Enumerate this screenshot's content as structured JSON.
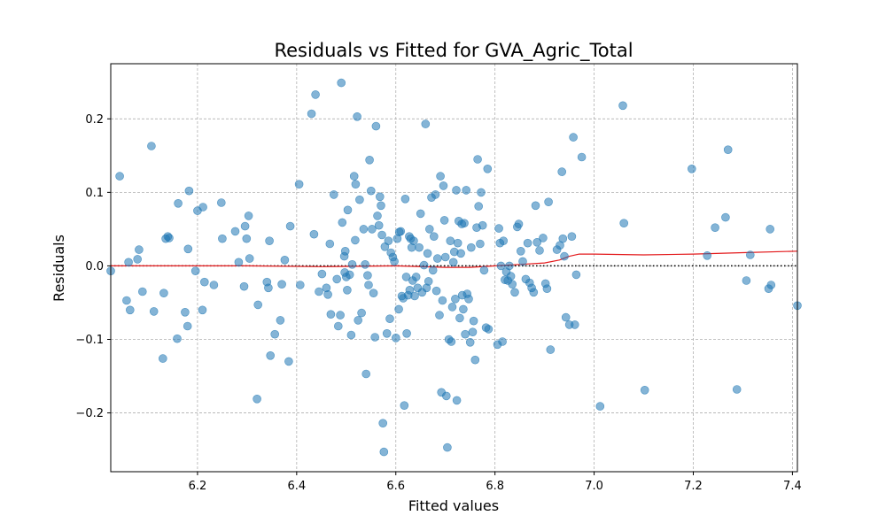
{
  "chart_data": {
    "type": "scatter",
    "title": "Residuals vs Fitted for GVA_Agric_Total",
    "xlabel": "Fitted values",
    "ylabel": "Residuals",
    "xlim": [
      6.025,
      7.41
    ],
    "ylim": [
      -0.28,
      0.275
    ],
    "xticks": [
      6.2,
      6.4,
      6.6,
      6.8,
      7.0,
      7.2,
      7.4
    ],
    "yticks": [
      -0.2,
      -0.1,
      0.0,
      0.1,
      0.2
    ],
    "xtick_labels": [
      "6.2",
      "6.4",
      "6.6",
      "6.8",
      "7.0",
      "7.2",
      "7.4"
    ],
    "ytick_labels": [
      "−0.2",
      "−0.1",
      "0.0",
      "0.1",
      "0.2"
    ],
    "grid": true,
    "point_color": "#1f77b4",
    "point_alpha": 0.55,
    "smooth_color": "#e31a1c",
    "zero_line_color": "#000000",
    "points": [
      [
        6.025,
        -0.007
      ],
      [
        6.043,
        0.122
      ],
      [
        6.057,
        -0.047
      ],
      [
        6.061,
        0.005
      ],
      [
        6.064,
        -0.06
      ],
      [
        6.079,
        0.009
      ],
      [
        6.082,
        0.022
      ],
      [
        6.089,
        -0.035
      ],
      [
        6.107,
        0.163
      ],
      [
        6.112,
        -0.062
      ],
      [
        6.13,
        -0.126
      ],
      [
        6.132,
        -0.037
      ],
      [
        6.136,
        0.037
      ],
      [
        6.14,
        0.04
      ],
      [
        6.143,
        0.038
      ],
      [
        6.159,
        -0.099
      ],
      [
        6.161,
        0.085
      ],
      [
        6.175,
        -0.063
      ],
      [
        6.18,
        -0.082
      ],
      [
        6.181,
        0.023
      ],
      [
        6.183,
        0.102
      ],
      [
        6.196,
        -0.007
      ],
      [
        6.2,
        0.075
      ],
      [
        6.21,
        -0.06
      ],
      [
        6.211,
        0.08
      ],
      [
        6.214,
        -0.022
      ],
      [
        6.233,
        -0.026
      ],
      [
        6.248,
        0.086
      ],
      [
        6.25,
        0.037
      ],
      [
        6.276,
        0.047
      ],
      [
        6.283,
        0.005
      ],
      [
        6.294,
        -0.028
      ],
      [
        6.296,
        0.054
      ],
      [
        6.299,
        0.037
      ],
      [
        6.303,
        0.068
      ],
      [
        6.305,
        0.01
      ],
      [
        6.32,
        -0.181
      ],
      [
        6.322,
        -0.053
      ],
      [
        6.34,
        -0.022
      ],
      [
        6.343,
        -0.03
      ],
      [
        6.345,
        0.034
      ],
      [
        6.347,
        -0.122
      ],
      [
        6.356,
        -0.093
      ],
      [
        6.367,
        -0.074
      ],
      [
        6.37,
        -0.025
      ],
      [
        6.376,
        0.008
      ],
      [
        6.384,
        -0.13
      ],
      [
        6.387,
        0.054
      ],
      [
        6.405,
        0.111
      ],
      [
        6.407,
        -0.026
      ],
      [
        6.43,
        0.207
      ],
      [
        6.435,
        0.043
      ],
      [
        6.438,
        0.233
      ],
      [
        6.445,
        -0.035
      ],
      [
        6.451,
        -0.011
      ],
      [
        6.46,
        -0.03
      ],
      [
        6.463,
        -0.039
      ],
      [
        6.467,
        0.03
      ],
      [
        6.469,
        -0.066
      ],
      [
        6.475,
        0.097
      ],
      [
        6.481,
        -0.018
      ],
      [
        6.484,
        -0.082
      ],
      [
        6.488,
        -0.067
      ],
      [
        6.49,
        0.249
      ],
      [
        6.492,
        0.059
      ],
      [
        6.496,
        0.013
      ],
      [
        6.497,
        -0.009
      ],
      [
        6.498,
        0.02
      ],
      [
        6.5,
        -0.015
      ],
      [
        6.502,
        -0.033
      ],
      [
        6.503,
        0.076
      ],
      [
        6.507,
        -0.012
      ],
      [
        6.51,
        -0.094
      ],
      [
        6.512,
        0.002
      ],
      [
        6.516,
        0.122
      ],
      [
        6.518,
        0.035
      ],
      [
        6.519,
        0.111
      ],
      [
        6.522,
        0.203
      ],
      [
        6.524,
        -0.074
      ],
      [
        6.527,
        0.09
      ],
      [
        6.531,
        -0.064
      ],
      [
        6.535,
        0.05
      ],
      [
        6.538,
        0.002
      ],
      [
        6.54,
        -0.147
      ],
      [
        6.543,
        -0.013
      ],
      [
        6.545,
        -0.026
      ],
      [
        6.547,
        0.144
      ],
      [
        6.55,
        0.102
      ],
      [
        6.552,
        0.05
      ],
      [
        6.555,
        -0.037
      ],
      [
        6.558,
        -0.097
      ],
      [
        6.56,
        0.19
      ],
      [
        6.563,
        0.068
      ],
      [
        6.566,
        0.055
      ],
      [
        6.568,
        0.094
      ],
      [
        6.57,
        0.082
      ],
      [
        6.572,
        0.042
      ],
      [
        6.574,
        -0.214
      ],
      [
        6.576,
        -0.253
      ],
      [
        6.578,
        0.026
      ],
      [
        6.582,
        -0.092
      ],
      [
        6.585,
        0.034
      ],
      [
        6.588,
        -0.072
      ],
      [
        6.59,
        0.018
      ],
      [
        6.594,
        0.012
      ],
      [
        6.597,
        0.006
      ],
      [
        6.6,
        -0.098
      ],
      [
        6.603,
        0.037
      ],
      [
        6.606,
        -0.059
      ],
      [
        6.607,
        0.046
      ],
      [
        6.61,
        0.047
      ],
      [
        6.612,
        -0.041
      ],
      [
        6.615,
        -0.044
      ],
      [
        6.617,
        -0.19
      ],
      [
        6.619,
        0.091
      ],
      [
        6.621,
        -0.015
      ],
      [
        6.622,
        -0.092
      ],
      [
        6.625,
        -0.04
      ],
      [
        6.627,
        0.04
      ],
      [
        6.628,
        -0.033
      ],
      [
        6.63,
        0.037
      ],
      [
        6.632,
        0.025
      ],
      [
        6.634,
        -0.02
      ],
      [
        6.636,
        0.034
      ],
      [
        6.638,
        -0.041
      ],
      [
        6.641,
        -0.015
      ],
      [
        6.644,
        -0.03
      ],
      [
        6.647,
        0.025
      ],
      [
        6.65,
        0.071
      ],
      [
        6.653,
        -0.036
      ],
      [
        6.657,
        0.001
      ],
      [
        6.66,
        0.193
      ],
      [
        6.662,
        -0.03
      ],
      [
        6.664,
        0.017
      ],
      [
        6.666,
        -0.021
      ],
      [
        6.668,
        0.05
      ],
      [
        6.672,
        0.093
      ],
      [
        6.675,
        -0.006
      ],
      [
        6.677,
        0.04
      ],
      [
        6.68,
        0.097
      ],
      [
        6.682,
        -0.034
      ],
      [
        6.684,
        0.01
      ],
      [
        6.688,
        -0.067
      ],
      [
        6.69,
        0.122
      ],
      [
        6.692,
        -0.172
      ],
      [
        6.694,
        -0.047
      ],
      [
        6.696,
        0.109
      ],
      [
        6.698,
        0.062
      ],
      [
        6.7,
        0.012
      ],
      [
        6.702,
        -0.177
      ],
      [
        6.704,
        -0.247
      ],
      [
        6.707,
        -0.1
      ],
      [
        6.71,
        0.034
      ],
      [
        6.712,
        -0.103
      ],
      [
        6.714,
        -0.056
      ],
      [
        6.716,
        0.005
      ],
      [
        6.718,
        0.019
      ],
      [
        6.72,
        -0.045
      ],
      [
        6.722,
        0.103
      ],
      [
        6.723,
        -0.183
      ],
      [
        6.725,
        0.031
      ],
      [
        6.727,
        0.061
      ],
      [
        6.729,
        -0.071
      ],
      [
        6.731,
        0.017
      ],
      [
        6.733,
        0.057
      ],
      [
        6.734,
        -0.04
      ],
      [
        6.736,
        -0.059
      ],
      [
        6.738,
        0.058
      ],
      [
        6.74,
        -0.093
      ],
      [
        6.742,
        0.103
      ],
      [
        6.744,
        -0.038
      ],
      [
        6.747,
        -0.045
      ],
      [
        6.75,
        -0.104
      ],
      [
        6.752,
        0.025
      ],
      [
        6.755,
        -0.09
      ],
      [
        6.757,
        -0.075
      ],
      [
        6.76,
        -0.128
      ],
      [
        6.763,
        0.052
      ],
      [
        6.765,
        0.145
      ],
      [
        6.767,
        0.081
      ],
      [
        6.77,
        0.03
      ],
      [
        6.772,
        0.1
      ],
      [
        6.775,
        0.055
      ],
      [
        6.778,
        -0.006
      ],
      [
        6.782,
        -0.084
      ],
      [
        6.785,
        0.132
      ],
      [
        6.787,
        -0.086
      ],
      [
        6.805,
        -0.107
      ],
      [
        6.808,
        0.051
      ],
      [
        6.81,
        0.031
      ],
      [
        6.812,
        0.0
      ],
      [
        6.815,
        -0.103
      ],
      [
        6.817,
        0.034
      ],
      [
        6.82,
        -0.019
      ],
      [
        6.823,
        -0.008
      ],
      [
        6.826,
        -0.02
      ],
      [
        6.829,
        0.0
      ],
      [
        6.832,
        -0.014
      ],
      [
        6.835,
        -0.025
      ],
      [
        6.84,
        -0.036
      ],
      [
        6.845,
        0.053
      ],
      [
        6.848,
        0.057
      ],
      [
        6.852,
        0.02
      ],
      [
        6.856,
        0.006
      ],
      [
        6.862,
        -0.018
      ],
      [
        6.866,
        0.031
      ],
      [
        6.87,
        -0.023
      ],
      [
        6.874,
        -0.03
      ],
      [
        6.878,
        -0.036
      ],
      [
        6.882,
        0.082
      ],
      [
        6.885,
        0.032
      ],
      [
        6.89,
        0.021
      ],
      [
        6.897,
        0.038
      ],
      [
        6.902,
        -0.024
      ],
      [
        6.905,
        -0.031
      ],
      [
        6.908,
        0.087
      ],
      [
        6.912,
        -0.114
      ],
      [
        6.925,
        0.022
      ],
      [
        6.931,
        0.028
      ],
      [
        6.935,
        0.128
      ],
      [
        6.937,
        0.037
      ],
      [
        6.94,
        0.013
      ],
      [
        6.943,
        -0.07
      ],
      [
        6.95,
        -0.08
      ],
      [
        6.955,
        0.04
      ],
      [
        6.958,
        0.175
      ],
      [
        6.961,
        -0.08
      ],
      [
        6.964,
        -0.012
      ],
      [
        6.975,
        0.148
      ],
      [
        7.012,
        -0.191
      ],
      [
        7.058,
        0.218
      ],
      [
        7.06,
        0.058
      ],
      [
        7.102,
        -0.169
      ],
      [
        7.197,
        0.132
      ],
      [
        7.228,
        0.014
      ],
      [
        7.244,
        0.052
      ],
      [
        7.265,
        0.066
      ],
      [
        7.27,
        0.158
      ],
      [
        7.288,
        -0.168
      ],
      [
        7.307,
        -0.02
      ],
      [
        7.315,
        0.015
      ],
      [
        7.352,
        -0.031
      ],
      [
        7.355,
        0.05
      ],
      [
        7.357,
        -0.026
      ],
      [
        7.41,
        -0.054
      ]
    ],
    "smooth": [
      [
        6.025,
        0.0
      ],
      [
        6.3,
        0.0
      ],
      [
        6.45,
        -0.001
      ],
      [
        6.6,
        0.0
      ],
      [
        6.7,
        -0.002
      ],
      [
        6.75,
        -0.002
      ],
      [
        6.8,
        0.0
      ],
      [
        6.85,
        0.002
      ],
      [
        6.9,
        0.004
      ],
      [
        6.93,
        0.008
      ],
      [
        6.95,
        0.013
      ],
      [
        6.97,
        0.016
      ],
      [
        7.0,
        0.016
      ],
      [
        7.1,
        0.015
      ],
      [
        7.2,
        0.016
      ],
      [
        7.3,
        0.018
      ],
      [
        7.41,
        0.02
      ]
    ]
  }
}
